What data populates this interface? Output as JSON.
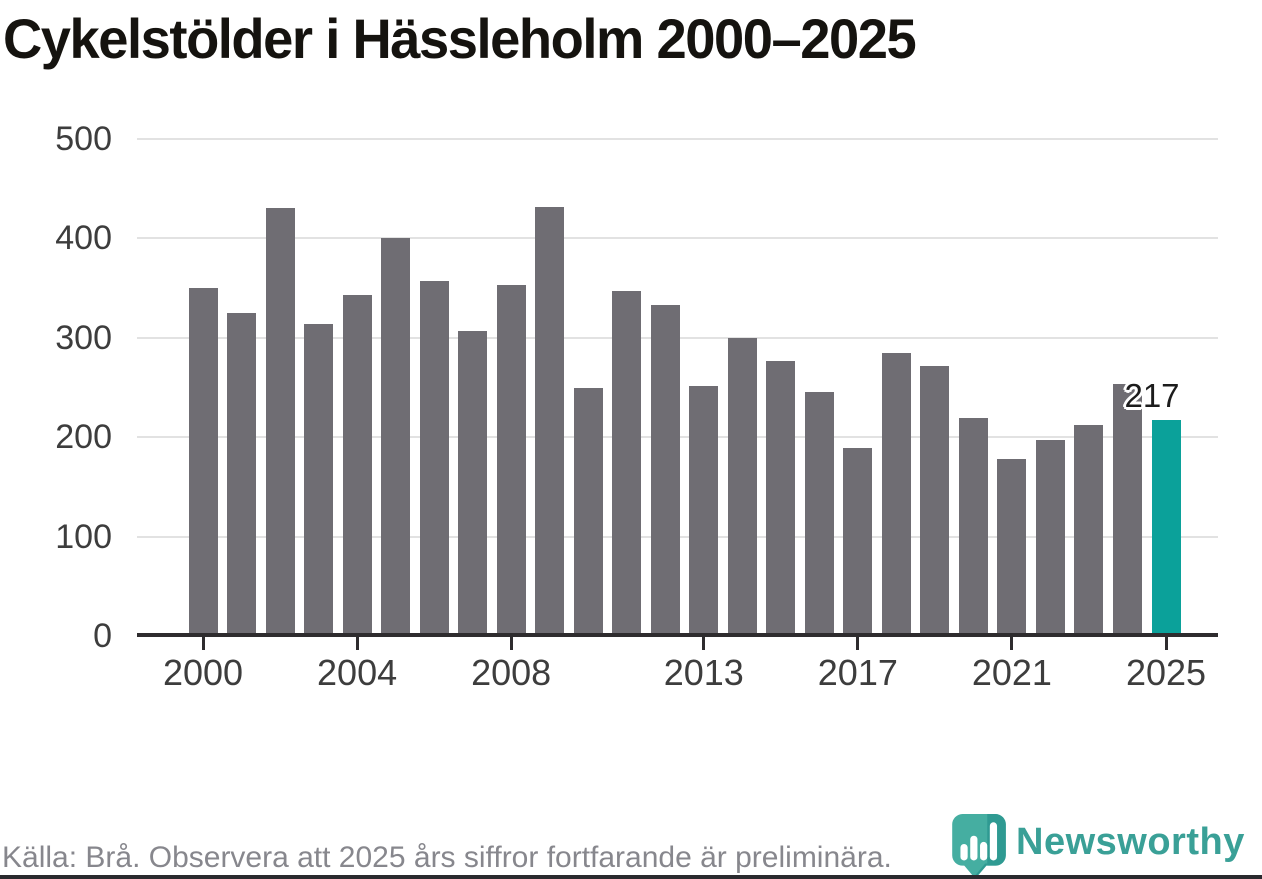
{
  "page": {
    "title": "Cykelstölder i Hässleholm 2000–2025"
  },
  "footer": {
    "source_note": "Källa: Brå. Observera att 2025 års siffror fortfarande är preliminära."
  },
  "branding": {
    "wordmark": "Newsworthy",
    "icon": "newsworthy-pin-barchart-icon",
    "wordmark_color": "#3aa097",
    "icon_color": "#45aea1",
    "icon_shade_color": "#2f9a92"
  },
  "colors": {
    "bar": "#6f6d73",
    "highlight": "#0ba19a",
    "axis": "#2e2c2e",
    "gridline": "#e2e2e2",
    "title_text": "#15130f",
    "tick_text": "#3d3d3d",
    "footer_text": "#87878d"
  },
  "chart_data": {
    "type": "bar",
    "title": "Cykelstölder i Hässleholm 2000–2025",
    "xlabel": "",
    "ylabel": "",
    "categories": [
      "2000",
      "2001",
      "2002",
      "2003",
      "2004",
      "2005",
      "2006",
      "2007",
      "2008",
      "2009",
      "2010",
      "2011",
      "2012",
      "2013",
      "2014",
      "2015",
      "2016",
      "2017",
      "2018",
      "2019",
      "2020",
      "2021",
      "2022",
      "2023",
      "2024",
      "2025"
    ],
    "values": [
      350,
      325,
      431,
      314,
      343,
      400,
      357,
      307,
      353,
      432,
      250,
      347,
      333,
      252,
      300,
      277,
      245,
      189,
      285,
      272,
      219,
      178,
      197,
      212,
      254,
      217
    ],
    "highlight_category": "2025",
    "highlight_index": 25,
    "highlight_value_label": "217",
    "x_tick_labels": [
      "2000",
      "2004",
      "2008",
      "2013",
      "2017",
      "2021",
      "2025"
    ],
    "y_ticks": [
      0,
      100,
      200,
      300,
      400,
      500
    ],
    "ylim": [
      0,
      500
    ],
    "grid": "horizontal",
    "legend": "none",
    "note": "2025 bar highlighted in teal, all other bars gray"
  }
}
